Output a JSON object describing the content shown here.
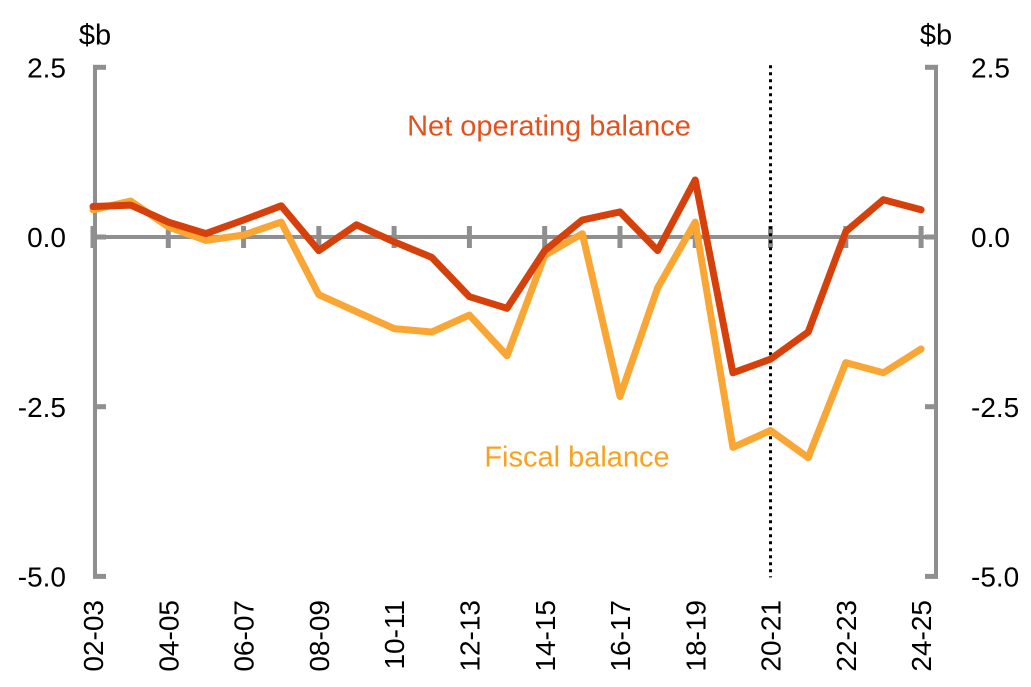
{
  "chart_data": {
    "type": "line",
    "title": "",
    "unit_label": "$b",
    "categories": [
      "02-03",
      "03-04",
      "04-05",
      "05-06",
      "06-07",
      "07-08",
      "08-09",
      "09-10",
      "10-11",
      "11-12",
      "12-13",
      "13-14",
      "14-15",
      "15-16",
      "16-17",
      "17-18",
      "18-19",
      "19-20",
      "20-21",
      "21-22",
      "22-23",
      "23-24",
      "24-25"
    ],
    "xtick_label_step": 2,
    "series": [
      {
        "name": "Net operating balance",
        "color": "#d6410b",
        "label_color": "#e2521c",
        "values": [
          0.45,
          0.47,
          0.22,
          0.05,
          0.25,
          0.46,
          -0.2,
          0.18,
          -0.07,
          -0.3,
          -0.88,
          -1.05,
          -0.2,
          0.25,
          0.37,
          -0.2,
          0.84,
          -2.0,
          -1.8,
          -1.4,
          0.08,
          0.55,
          0.4
        ]
      },
      {
        "name": "Fiscal balance",
        "color": "#faa634",
        "label_color": "#f9a21f",
        "values": [
          0.4,
          0.53,
          0.15,
          -0.05,
          0.03,
          0.22,
          -0.85,
          -1.1,
          -1.35,
          -1.4,
          -1.15,
          -1.75,
          -0.27,
          0.05,
          -2.35,
          -0.75,
          0.22,
          -3.1,
          -2.85,
          -3.25,
          -1.85,
          -2.0,
          -1.65
        ]
      }
    ],
    "yticks": [
      "2.5",
      "0.0",
      "-2.5",
      "-5.0"
    ],
    "ytick_values": [
      2.5,
      0.0,
      -2.5,
      -5.0
    ],
    "ylim": [
      -5.0,
      2.5
    ],
    "axis_color": "#8f8f8f",
    "zero_line": true,
    "grid": "off",
    "legend_position": "inline-annotations",
    "forecast_divider_category": "20-21",
    "forecast_divider_style": "dotted-black"
  }
}
